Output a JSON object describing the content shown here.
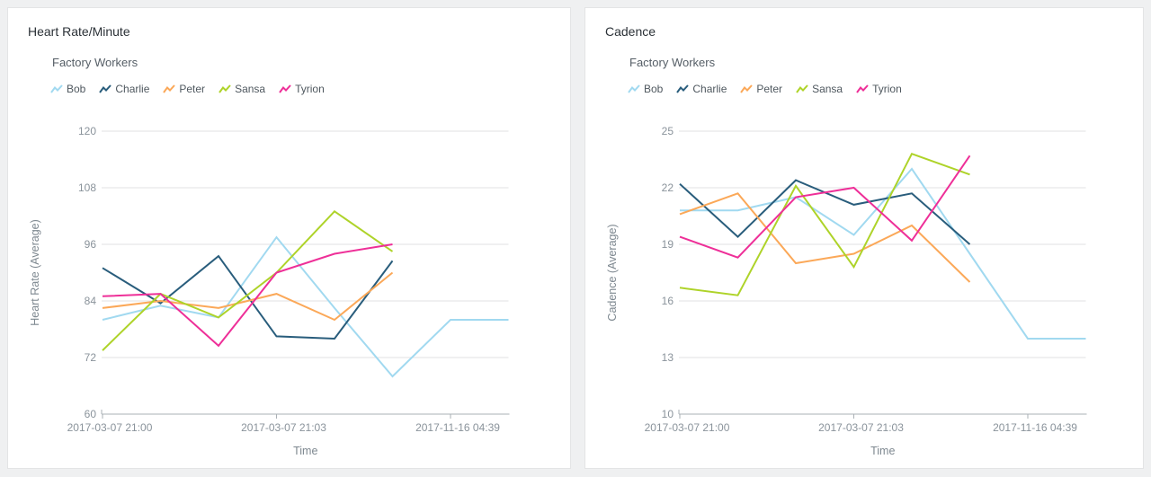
{
  "page": {
    "background": "#eff0f1",
    "card_background": "#ffffff"
  },
  "chart_data": [
    {
      "type": "line",
      "title": "Heart Rate/Minute",
      "subtitle": "Factory Workers",
      "xlabel": "Time",
      "ylabel": "Heart Rate (Average)",
      "ylim": [
        60,
        120
      ],
      "y_ticks": [
        120,
        108,
        96,
        84,
        72,
        60
      ],
      "x_slots": 8,
      "x_tick_indices": [
        0,
        3,
        6
      ],
      "x_tick_labels": [
        "2017-03-07 21:00",
        "2017-03-07 21:03",
        "2017-11-16 04:39"
      ],
      "grid": "horizontal",
      "legend_position": "top-left",
      "series": [
        {
          "name": "Bob",
          "color": "#a1d9f0",
          "values": [
            80,
            83,
            80.5,
            97.5,
            82.5,
            68,
            80,
            80
          ]
        },
        {
          "name": "Charlie",
          "color": "#295d7c",
          "values": [
            91,
            83.5,
            93.5,
            76.5,
            76,
            92.5
          ]
        },
        {
          "name": "Peter",
          "color": "#fba858",
          "values": [
            82.5,
            84,
            82.5,
            85.5,
            80,
            90
          ]
        },
        {
          "name": "Sansa",
          "color": "#aed329",
          "values": [
            73.5,
            85.5,
            80.5,
            90,
            103,
            94.5
          ]
        },
        {
          "name": "Tyrion",
          "color": "#ee2f98",
          "values": [
            85,
            85.5,
            74.5,
            90,
            94,
            96
          ]
        }
      ]
    },
    {
      "type": "line",
      "title": "Cadence",
      "subtitle": "Factory Workers",
      "xlabel": "Time",
      "ylabel": "Cadence (Average)",
      "ylim": [
        10,
        25
      ],
      "y_ticks": [
        25,
        22,
        19,
        16,
        13,
        10
      ],
      "x_slots": 8,
      "x_tick_indices": [
        0,
        3,
        6
      ],
      "x_tick_labels": [
        "2017-03-07 21:00",
        "2017-03-07 21:03",
        "2017-11-16 04:39"
      ],
      "grid": "horizontal",
      "legend_position": "top-left",
      "series": [
        {
          "name": "Bob",
          "color": "#a1d9f0",
          "values": [
            20.8,
            20.8,
            21.5,
            19.5,
            23,
            18.5,
            14,
            14
          ]
        },
        {
          "name": "Charlie",
          "color": "#295d7c",
          "values": [
            22.2,
            19.4,
            22.4,
            21.1,
            21.7,
            19
          ]
        },
        {
          "name": "Peter",
          "color": "#fba858",
          "values": [
            20.6,
            21.7,
            18,
            18.5,
            20,
            17
          ]
        },
        {
          "name": "Sansa",
          "color": "#aed329",
          "values": [
            16.7,
            16.3,
            22.1,
            17.8,
            23.8,
            22.7
          ]
        },
        {
          "name": "Tyrion",
          "color": "#ee2f98",
          "values": [
            19.4,
            18.3,
            21.5,
            22,
            19.2,
            23.7
          ]
        }
      ]
    }
  ]
}
